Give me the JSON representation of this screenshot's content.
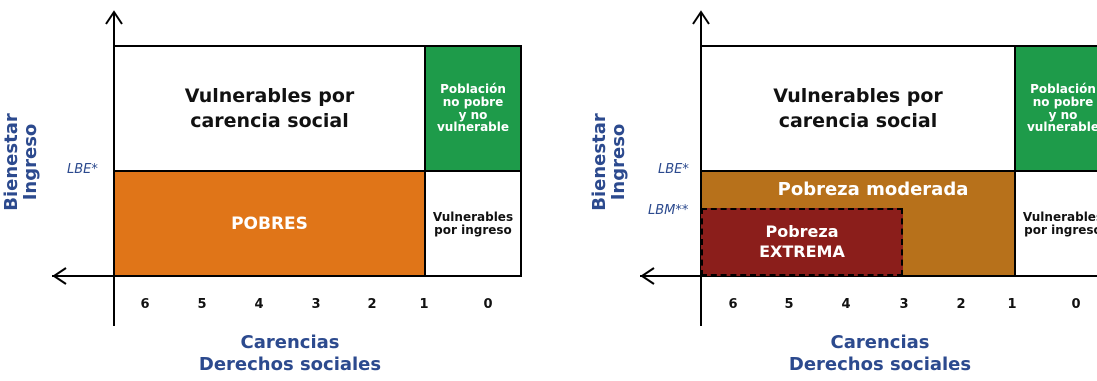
{
  "y_axis": {
    "line1": "Bienestar",
    "line2": "Ingreso"
  },
  "x_axis": {
    "line1": "Carencias",
    "line2": "Derechos sociales"
  },
  "ticks": [
    "6",
    "5",
    "4",
    "3",
    "2",
    "1",
    "0"
  ],
  "left": {
    "lbe_label": "LBE*",
    "vuln_social": {
      "line1": "Vulnerables por",
      "line2": "carencia social"
    },
    "no_pobre": {
      "line1": "Población",
      "line2": "no pobre",
      "line3": "y no",
      "line4": "vulnerable"
    },
    "vuln_ingreso": {
      "line1": "Vulnerables",
      "line2": "por ingreso"
    },
    "pobres": "POBRES"
  },
  "right": {
    "lbe_label": "LBE*",
    "lbm_label": "LBM**",
    "vuln_social": {
      "line1": "Vulnerables por",
      "line2": "carencia social"
    },
    "no_pobre": {
      "line1": "Población",
      "line2": "no pobre",
      "line3": "y no",
      "line4": "vulnerable"
    },
    "vuln_ingreso": {
      "line1": "Vulnerables",
      "line2": "por ingreso"
    },
    "moderada": "Pobreza moderada",
    "extrema": {
      "line1": "Pobreza",
      "line2": "EXTREMA"
    }
  },
  "colors": {
    "axis_text": "#2c4a8e",
    "no_pobre": "#1e9b4a",
    "pobres": "#e07518",
    "moderada": "#b7711b",
    "extrema": "#8b1e1b"
  }
}
